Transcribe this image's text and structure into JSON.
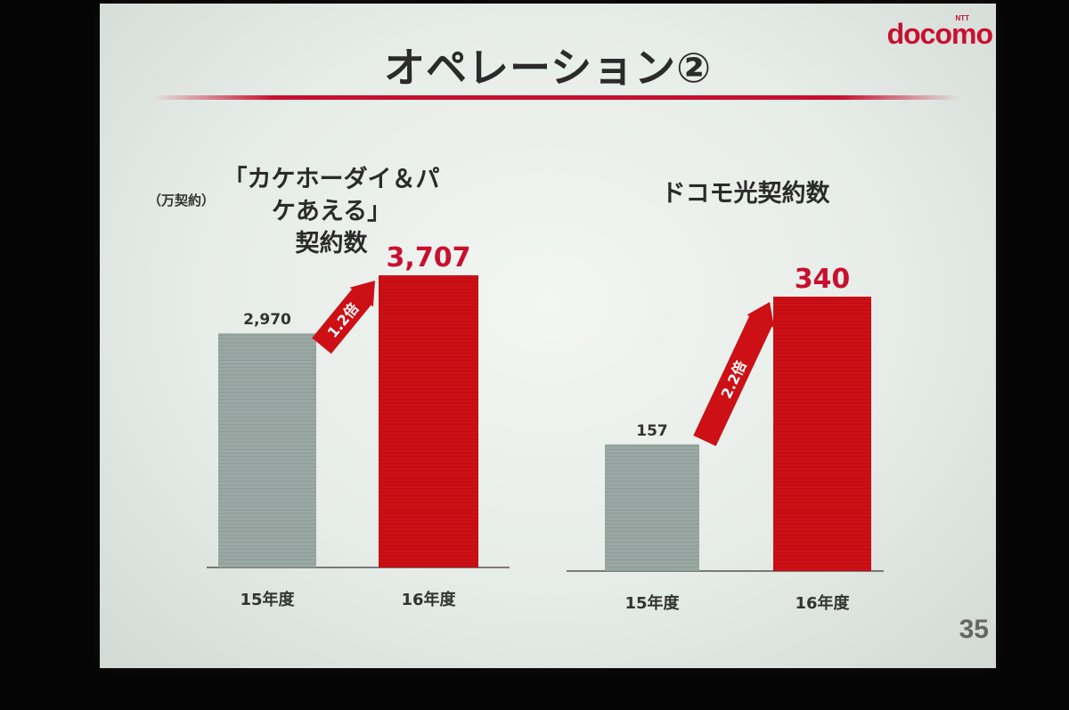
{
  "slide": {
    "title": "オペレーション②",
    "logo_text": "docomo",
    "logo_sup": "NTT",
    "unit_label": "（万契約）",
    "page_number": "35"
  },
  "colors": {
    "accent": "#c8102e",
    "gray_bar": "#9aa8a4",
    "red_bar": "#cc1016"
  },
  "chart_data": [
    {
      "type": "bar",
      "title": "「カケホーダイ＆パケあえる」\n契約数",
      "categories": [
        "15年度",
        "16年度"
      ],
      "values": [
        2970,
        3707
      ],
      "value_labels": [
        "2,970",
        "3,707"
      ],
      "growth_label": "1.2倍",
      "ylim": [
        0,
        3707
      ]
    },
    {
      "type": "bar",
      "title": "ドコモ光契約数",
      "categories": [
        "15年度",
        "16年度"
      ],
      "values": [
        157,
        340
      ],
      "value_labels": [
        "157",
        "340"
      ],
      "growth_label": "2.2倍",
      "ylim": [
        0,
        340
      ]
    }
  ]
}
